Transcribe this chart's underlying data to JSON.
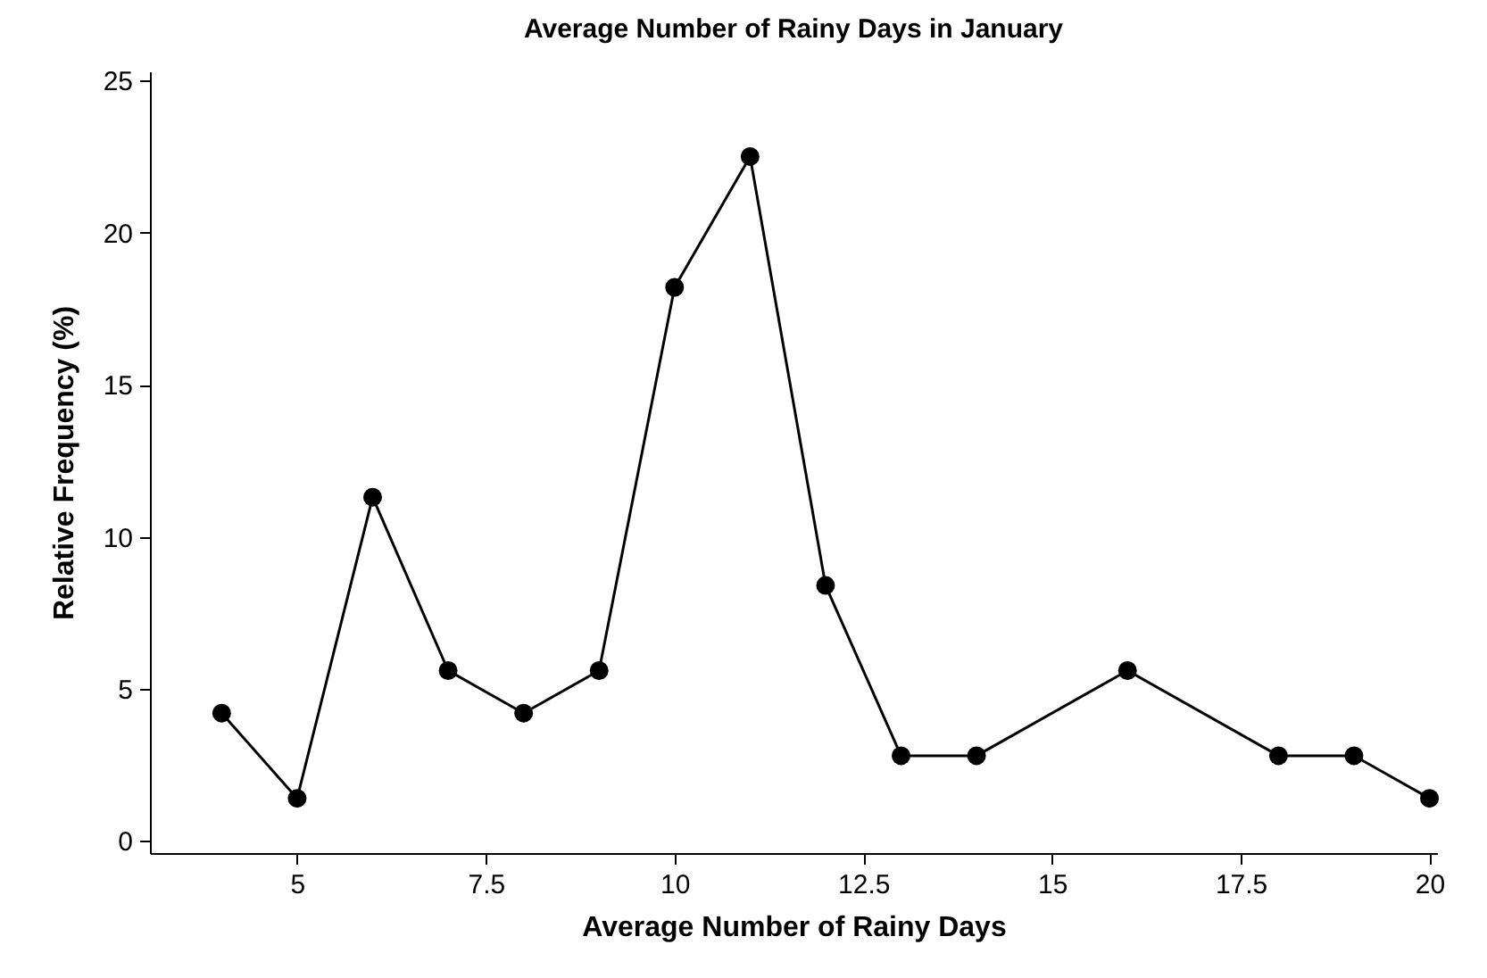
{
  "chart_data": {
    "type": "line",
    "title": "Average Number of Rainy Days in January",
    "xlabel": "Average Number of Rainy Days",
    "ylabel": "Relative Frequency (%)",
    "x": [
      4,
      5,
      6,
      7,
      8,
      9,
      10,
      11,
      12,
      13,
      14,
      16,
      18,
      19,
      20
    ],
    "series": [
      {
        "color": "#000000",
        "values": [
          4.2,
          1.4,
          11.3,
          5.6,
          4.2,
          5.6,
          18.2,
          22.5,
          8.4,
          2.8,
          2.8,
          5.6,
          2.8,
          2.8,
          1.4
        ]
      }
    ],
    "xlim": [
      3.05,
      20.1
    ],
    "xticks": [
      5,
      7.5,
      10,
      12.5,
      15,
      17.5,
      20
    ],
    "ylim": [
      -0.4,
      25.3
    ],
    "yticks": [
      0,
      5,
      10,
      15,
      20,
      25
    ],
    "grid": false,
    "legend": false,
    "marker": "circle",
    "line_style": "solid"
  }
}
